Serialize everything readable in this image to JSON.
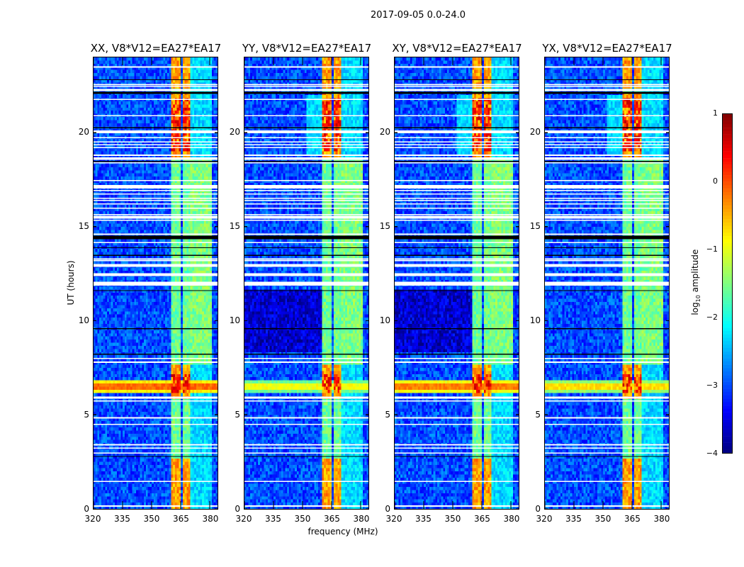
{
  "chart_data": {
    "type": "heatmap",
    "suptitle": "2017-09-05 0.0-24.0",
    "xlabel": "frequency (MHz)",
    "ylabel": "UT (hours)",
    "xlim": [
      320,
      384
    ],
    "ylim": [
      0,
      24
    ],
    "xticks": [
      320,
      335,
      350,
      365,
      380
    ],
    "yticks": [
      0,
      5,
      10,
      15,
      20
    ],
    "colormap": "jet",
    "colorbar": {
      "label_main": "log",
      "label_sub": "10",
      "label_rest": " amplitude",
      "vmin": -4,
      "vmax": 1,
      "ticks": [
        "1",
        "0",
        "−1",
        "−2",
        "−3",
        "−4"
      ],
      "tick_values": [
        1,
        0,
        -1,
        -2,
        -3,
        -4
      ]
    },
    "panels": [
      {
        "title": "XX, V8*V12=EA27*EA17",
        "rfi_level": 0.2,
        "dark_period": false,
        "hump": false
      },
      {
        "title": "YY, V8*V12=EA27*EA17",
        "rfi_level": -0.6,
        "dark_period": true,
        "hump": true
      },
      {
        "title": "XY, V8*V12=EA27*EA17",
        "rfi_level": 0.1,
        "dark_period": true,
        "hump": true
      },
      {
        "title": "YX, V8*V12=EA27*EA17",
        "rfi_level": -0.4,
        "dark_period": false,
        "hump": true
      }
    ],
    "background_level": -3.0,
    "strong_bands_mhz": [
      [
        360.5,
        365
      ],
      [
        365.8,
        370
      ]
    ],
    "weak_bands_mhz": [
      [
        370.5,
        376.5
      ],
      [
        377,
        380.5
      ]
    ],
    "active_periods_h": [
      [
        0,
        2.6
      ],
      [
        5.8,
        7.6
      ],
      [
        18.7,
        22.1
      ],
      [
        22.4,
        24
      ]
    ],
    "broadband_rfi_h": [
      6.1,
      6.9
    ],
    "flagged_white_h": [
      [
        23.46,
        23.52
      ],
      [
        22.52,
        22.58
      ],
      [
        22.41,
        22.47
      ],
      [
        22.21,
        22.33
      ],
      [
        21.73,
        21.79
      ],
      [
        20.87,
        20.93
      ],
      [
        19.96,
        20.11
      ],
      [
        19.71,
        19.77
      ],
      [
        19.48,
        19.54
      ],
      [
        19.33,
        19.39
      ],
      [
        19.18,
        19.24
      ],
      [
        18.77,
        18.83
      ],
      [
        18.62,
        18.68
      ],
      [
        18.55,
        18.61
      ],
      [
        18.36,
        18.42
      ],
      [
        17.43,
        17.49
      ],
      [
        17.03,
        17.22
      ],
      [
        16.89,
        16.95
      ],
      [
        16.71,
        16.77
      ],
      [
        16.48,
        16.54
      ],
      [
        16.37,
        16.43
      ],
      [
        16.18,
        16.24
      ],
      [
        15.95,
        16.01
      ],
      [
        15.62,
        15.68
      ],
      [
        15.42,
        15.57
      ],
      [
        15.32,
        15.38
      ],
      [
        14.57,
        14.63
      ],
      [
        14.12,
        14.18
      ],
      [
        13.25,
        13.31
      ],
      [
        13.17,
        13.23
      ],
      [
        12.87,
        13.02
      ],
      [
        12.38,
        12.53
      ],
      [
        11.86,
        12.08
      ],
      [
        7.96,
        8.02
      ],
      [
        7.77,
        7.83
      ],
      [
        5.85,
        5.97
      ],
      [
        5.71,
        5.77
      ],
      [
        4.81,
        4.87
      ],
      [
        4.47,
        4.53
      ],
      [
        3.38,
        3.44
      ],
      [
        3.2,
        3.26
      ],
      [
        2.93,
        2.99
      ],
      [
        1.43,
        1.49
      ],
      [
        0.12,
        0.18
      ]
    ],
    "flagged_black_h": [
      [
        22.79,
        22.84
      ],
      [
        22.06,
        22.17
      ],
      [
        20.24,
        20.29
      ],
      [
        18.44,
        18.49
      ],
      [
        14.33,
        14.52
      ],
      [
        13.86,
        13.91
      ],
      [
        13.45,
        13.5
      ],
      [
        11.58,
        11.63
      ],
      [
        9.55,
        9.6
      ],
      [
        8.2,
        8.25
      ],
      [
        2.76,
        2.81
      ]
    ]
  }
}
